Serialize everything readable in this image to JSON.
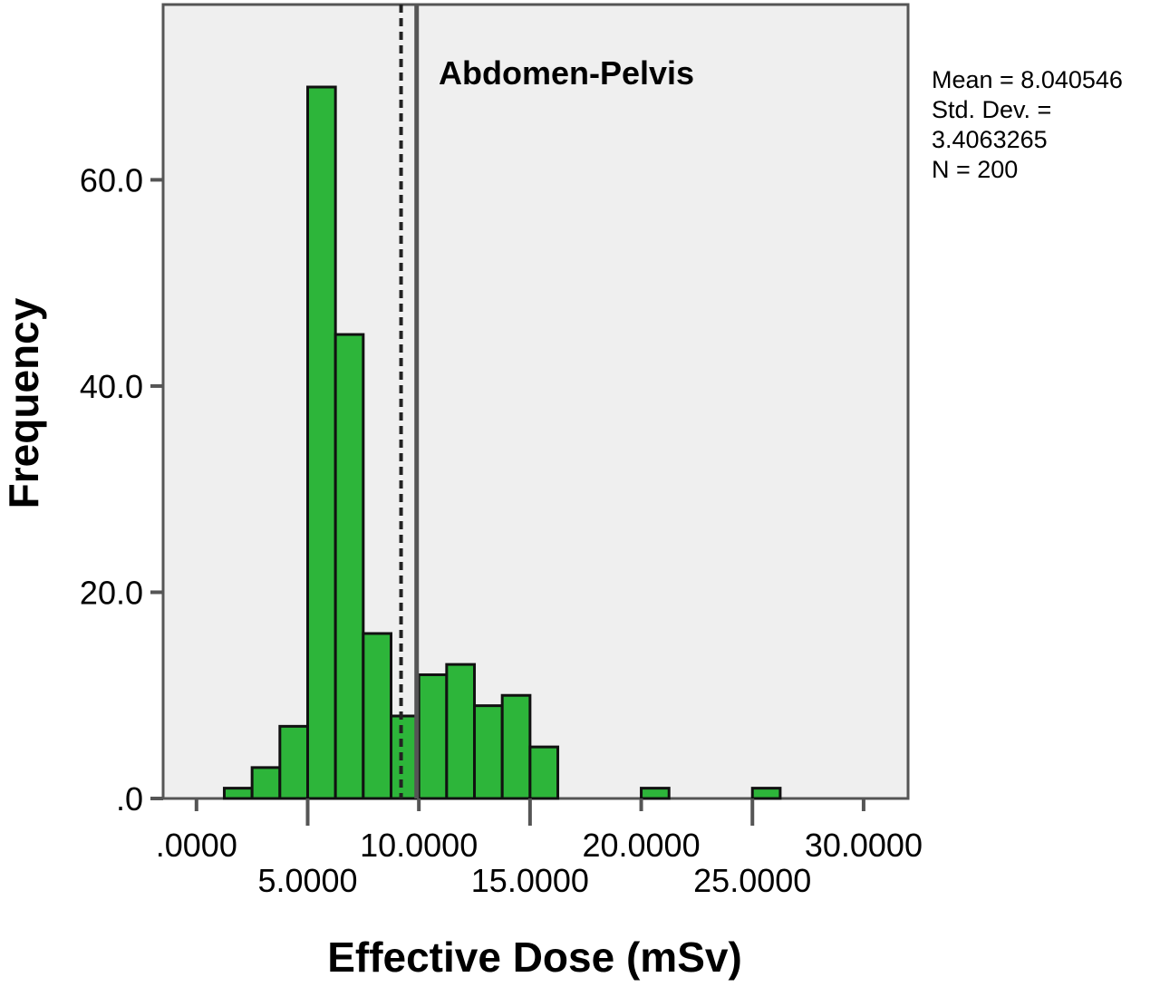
{
  "chart_data": {
    "type": "bar",
    "subtype": "histogram",
    "title": "Abdomen-Pelvis",
    "xlabel": "Effective Dose (mSv)",
    "ylabel": "Frequency",
    "xlim": [
      -1.5,
      32.0
    ],
    "ylim": [
      0,
      77
    ],
    "x_ticks": [
      {
        "value": 0,
        "label": ".0000",
        "row": "upper"
      },
      {
        "value": 5,
        "label": "5.0000",
        "row": "lower"
      },
      {
        "value": 10,
        "label": "10.0000",
        "row": "upper"
      },
      {
        "value": 15,
        "label": "15.0000",
        "row": "lower"
      },
      {
        "value": 20,
        "label": "20.0000",
        "row": "upper"
      },
      {
        "value": 25,
        "label": "25.0000",
        "row": "lower"
      },
      {
        "value": 30,
        "label": "30.0000",
        "row": "upper"
      }
    ],
    "y_ticks": [
      {
        "value": 0,
        "label": ".0"
      },
      {
        "value": 20,
        "label": "20.0"
      },
      {
        "value": 40,
        "label": "40.0"
      },
      {
        "value": 60,
        "label": "60.0"
      }
    ],
    "bin_width": 1.25,
    "bins": [
      {
        "start": 1.25,
        "count": 1
      },
      {
        "start": 2.5,
        "count": 3
      },
      {
        "start": 3.75,
        "count": 7
      },
      {
        "start": 5.0,
        "count": 69
      },
      {
        "start": 6.25,
        "count": 45
      },
      {
        "start": 7.5,
        "count": 16
      },
      {
        "start": 8.75,
        "count": 8
      },
      {
        "start": 10.0,
        "count": 12
      },
      {
        "start": 11.25,
        "count": 13
      },
      {
        "start": 12.5,
        "count": 9
      },
      {
        "start": 13.75,
        "count": 10
      },
      {
        "start": 15.0,
        "count": 5
      },
      {
        "start": 20.0,
        "count": 1
      },
      {
        "start": 25.0,
        "count": 1
      }
    ],
    "reference_lines": [
      {
        "x": 9.9,
        "style": "solid"
      },
      {
        "x": 9.2,
        "style": "dashed"
      }
    ],
    "grid": false,
    "legend": "none",
    "bar_color": "#2db53a",
    "plot_background": "#efefef",
    "stats": {
      "mean": "Mean = 8.040546",
      "std_label": "Std. Dev. =",
      "std_value": "3.4063265",
      "n": "N = 200"
    }
  }
}
